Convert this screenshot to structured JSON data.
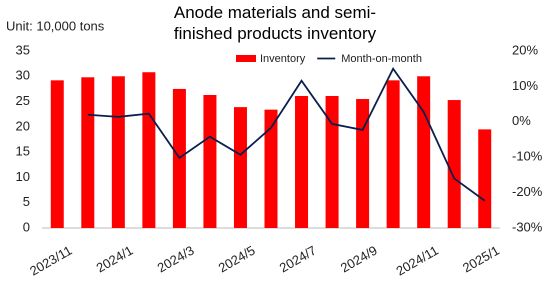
{
  "chart_data": {
    "type": "bar_line",
    "title": "Anode materials and semi-finished products inventory",
    "annotation": "Unit: 10,000 tons",
    "categories": [
      "2023/11",
      null,
      "2024/1",
      null,
      "2024/3",
      null,
      "2024/5",
      null,
      "2024/7",
      null,
      "2024/9",
      null,
      "2024/11",
      null,
      "2025/1"
    ],
    "series": [
      {
        "name": "Inventory",
        "type": "bar",
        "color": "#ff0000",
        "values": [
          29.2,
          29.8,
          30.0,
          30.8,
          27.5,
          26.3,
          23.9,
          23.4,
          26.1,
          26.1,
          25.5,
          29.2,
          30.0,
          25.3,
          19.5
        ]
      },
      {
        "name": "Month-on-month",
        "type": "line",
        "axis": "y2",
        "color": "#0b1f4d",
        "values": [
          null,
          2.0,
          1.4,
          2.3,
          -10.2,
          -4.2,
          -9.3,
          -1.7,
          11.6,
          -0.6,
          -2.3,
          15.0,
          2.8,
          -16.0,
          -22.3
        ]
      }
    ],
    "ylim": [
      0,
      35
    ],
    "yticks": [
      0,
      5,
      10,
      15,
      20,
      25,
      30,
      35
    ],
    "y2lim": [
      -30,
      20
    ],
    "y2ticks": [
      {
        "value": -30,
        "label": "-30%"
      },
      {
        "value": -20,
        "label": "-20%"
      },
      {
        "value": -10,
        "label": "-10%"
      },
      {
        "value": 0,
        "label": "0%"
      },
      {
        "value": 10,
        "label": "10%"
      },
      {
        "value": 20,
        "label": "20%"
      }
    ],
    "grid": false,
    "legend": "top-right"
  }
}
